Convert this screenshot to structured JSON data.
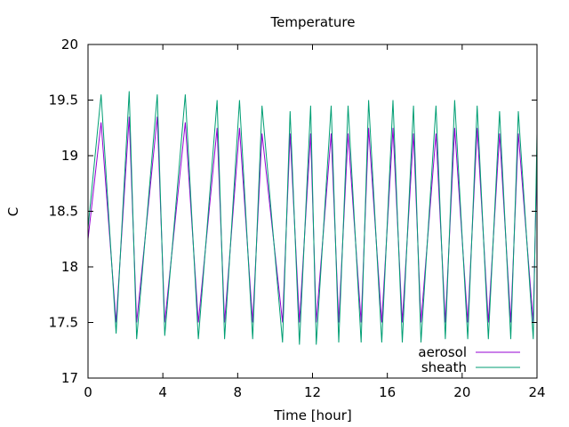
{
  "chart_data": {
    "type": "line",
    "title": "Temperature",
    "xlabel": "Time [hour]",
    "ylabel": "C",
    "xlim": [
      0,
      24
    ],
    "ylim": [
      17,
      20
    ],
    "x_ticks": [
      0,
      4,
      8,
      12,
      16,
      20,
      24
    ],
    "x_tick_labels": [
      "0",
      "4",
      "8",
      "12",
      "16",
      "20",
      "24"
    ],
    "y_ticks": [
      17,
      17.5,
      18,
      18.5,
      19,
      19.5,
      20
    ],
    "y_tick_labels": [
      "17",
      "17.5",
      "18",
      "18.5",
      "19",
      "19.5",
      "20"
    ],
    "grid": false,
    "legend_position": "bottom-right",
    "series": [
      {
        "name": "aerosol",
        "color": "#9400d3",
        "x": [
          0.0,
          0.7,
          1.5,
          2.2,
          2.6,
          3.7,
          4.1,
          5.2,
          5.9,
          6.9,
          7.3,
          8.1,
          8.8,
          9.3,
          10.4,
          10.8,
          11.3,
          11.9,
          12.2,
          13.0,
          13.4,
          13.9,
          14.6,
          15.0,
          15.7,
          16.3,
          16.8,
          17.4,
          17.8,
          18.6,
          19.1,
          19.6,
          20.3,
          20.8,
          21.4,
          22.0,
          22.6,
          23.0,
          23.8,
          24.0
        ],
        "values": [
          18.25,
          19.3,
          17.5,
          19.35,
          17.5,
          19.35,
          17.5,
          19.3,
          17.5,
          19.25,
          17.5,
          19.25,
          17.5,
          19.2,
          17.5,
          19.2,
          17.5,
          19.2,
          17.5,
          19.2,
          17.5,
          19.2,
          17.5,
          19.25,
          17.5,
          19.25,
          17.5,
          19.2,
          17.5,
          19.2,
          17.5,
          19.25,
          17.5,
          19.25,
          17.5,
          19.2,
          17.5,
          19.2,
          17.5,
          19.0
        ]
      },
      {
        "name": "sheath",
        "color": "#009e73",
        "x": [
          0.0,
          0.7,
          1.5,
          2.2,
          2.6,
          3.7,
          4.1,
          5.2,
          5.9,
          6.9,
          7.3,
          8.1,
          8.8,
          9.3,
          10.4,
          10.8,
          11.3,
          11.9,
          12.2,
          13.0,
          13.4,
          13.9,
          14.6,
          15.0,
          15.7,
          16.3,
          16.8,
          17.4,
          17.8,
          18.6,
          19.1,
          19.6,
          20.3,
          20.8,
          21.4,
          22.0,
          22.6,
          23.0,
          23.8,
          24.0
        ],
        "values": [
          18.35,
          19.55,
          17.4,
          19.58,
          17.35,
          19.55,
          17.38,
          19.55,
          17.35,
          19.5,
          17.35,
          19.5,
          17.35,
          19.45,
          17.32,
          19.4,
          17.3,
          19.45,
          17.3,
          19.45,
          17.32,
          19.45,
          17.32,
          19.5,
          17.32,
          19.5,
          17.32,
          19.45,
          17.32,
          19.45,
          17.35,
          19.5,
          17.35,
          19.45,
          17.35,
          19.4,
          17.35,
          19.4,
          17.35,
          19.2
        ]
      }
    ]
  }
}
